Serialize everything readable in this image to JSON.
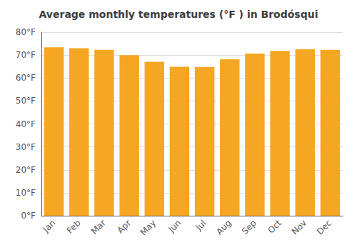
{
  "chart_data": {
    "type": "bar",
    "title": "Average monthly temperatures (°F ) in Brodósqui",
    "categories": [
      "Jan",
      "Feb",
      "Mar",
      "Apr",
      "May",
      "Jun",
      "Jul",
      "Aug",
      "Sep",
      "Oct",
      "Nov",
      "Dec"
    ],
    "values": [
      73.4,
      73.0,
      72.3,
      70.0,
      67.1,
      64.9,
      64.8,
      68.2,
      70.7,
      71.8,
      72.5,
      72.3
    ],
    "color": "#F5A623",
    "ylim": [
      0,
      80
    ],
    "yticks": [
      {
        "value": 0,
        "label": "0°F"
      },
      {
        "value": 10,
        "label": "10°F"
      },
      {
        "value": 20,
        "label": "20°F"
      },
      {
        "value": 30,
        "label": "30°F"
      },
      {
        "value": 40,
        "label": "40°F"
      },
      {
        "value": 50,
        "label": "50°F"
      },
      {
        "value": 60,
        "label": "60°F"
      },
      {
        "value": 70,
        "label": "70°F"
      },
      {
        "value": 80,
        "label": "80°F"
      }
    ],
    "grid": true
  }
}
